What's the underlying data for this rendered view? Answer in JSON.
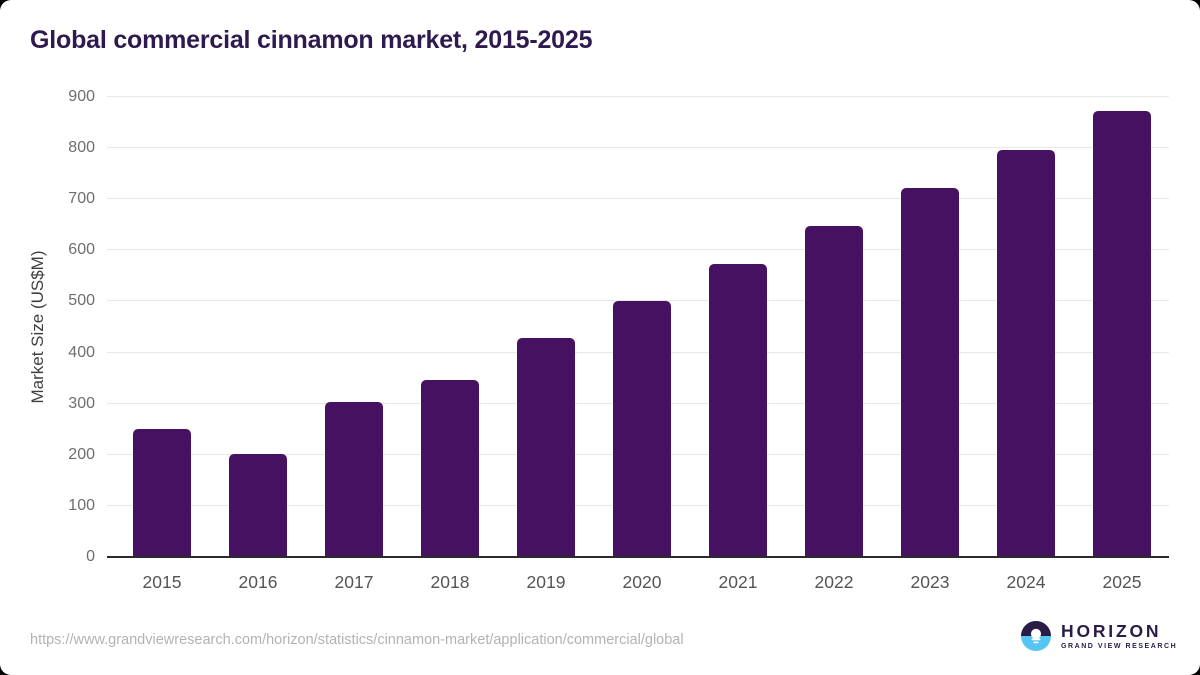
{
  "page": {
    "title": "Global commercial cinnamon market, 2015-2025"
  },
  "chart_data": {
    "type": "bar",
    "title": "Global commercial cinnamon market, 2015-2025",
    "categories": [
      "2015",
      "2016",
      "2017",
      "2018",
      "2019",
      "2020",
      "2021",
      "2022",
      "2023",
      "2024",
      "2025"
    ],
    "values": [
      249,
      200,
      301,
      344,
      426,
      499,
      572,
      646,
      720,
      795,
      870
    ],
    "xlabel": "",
    "ylabel": "Market Size (US$M)",
    "ylim": [
      0,
      900
    ],
    "ytick_step": 100,
    "grid": true,
    "legend": false,
    "bar_color": "#471161"
  },
  "footer": {
    "source_url": "https://www.grandviewresearch.com/horizon/statistics/cinnamon-market/application/commercial/global",
    "logo": {
      "name": "HORIZON",
      "tagline": "GRAND VIEW RESEARCH"
    }
  },
  "colors": {
    "title_text": "#2e1a4e",
    "bar": "#471161",
    "gridline": "#e8e8eb",
    "axis_line": "#2b2b2b",
    "tick_text": "#6e6e6e",
    "url_text": "#b3b3b3",
    "logo_dark": "#2b1b47",
    "logo_blue": "#55c6f2"
  }
}
